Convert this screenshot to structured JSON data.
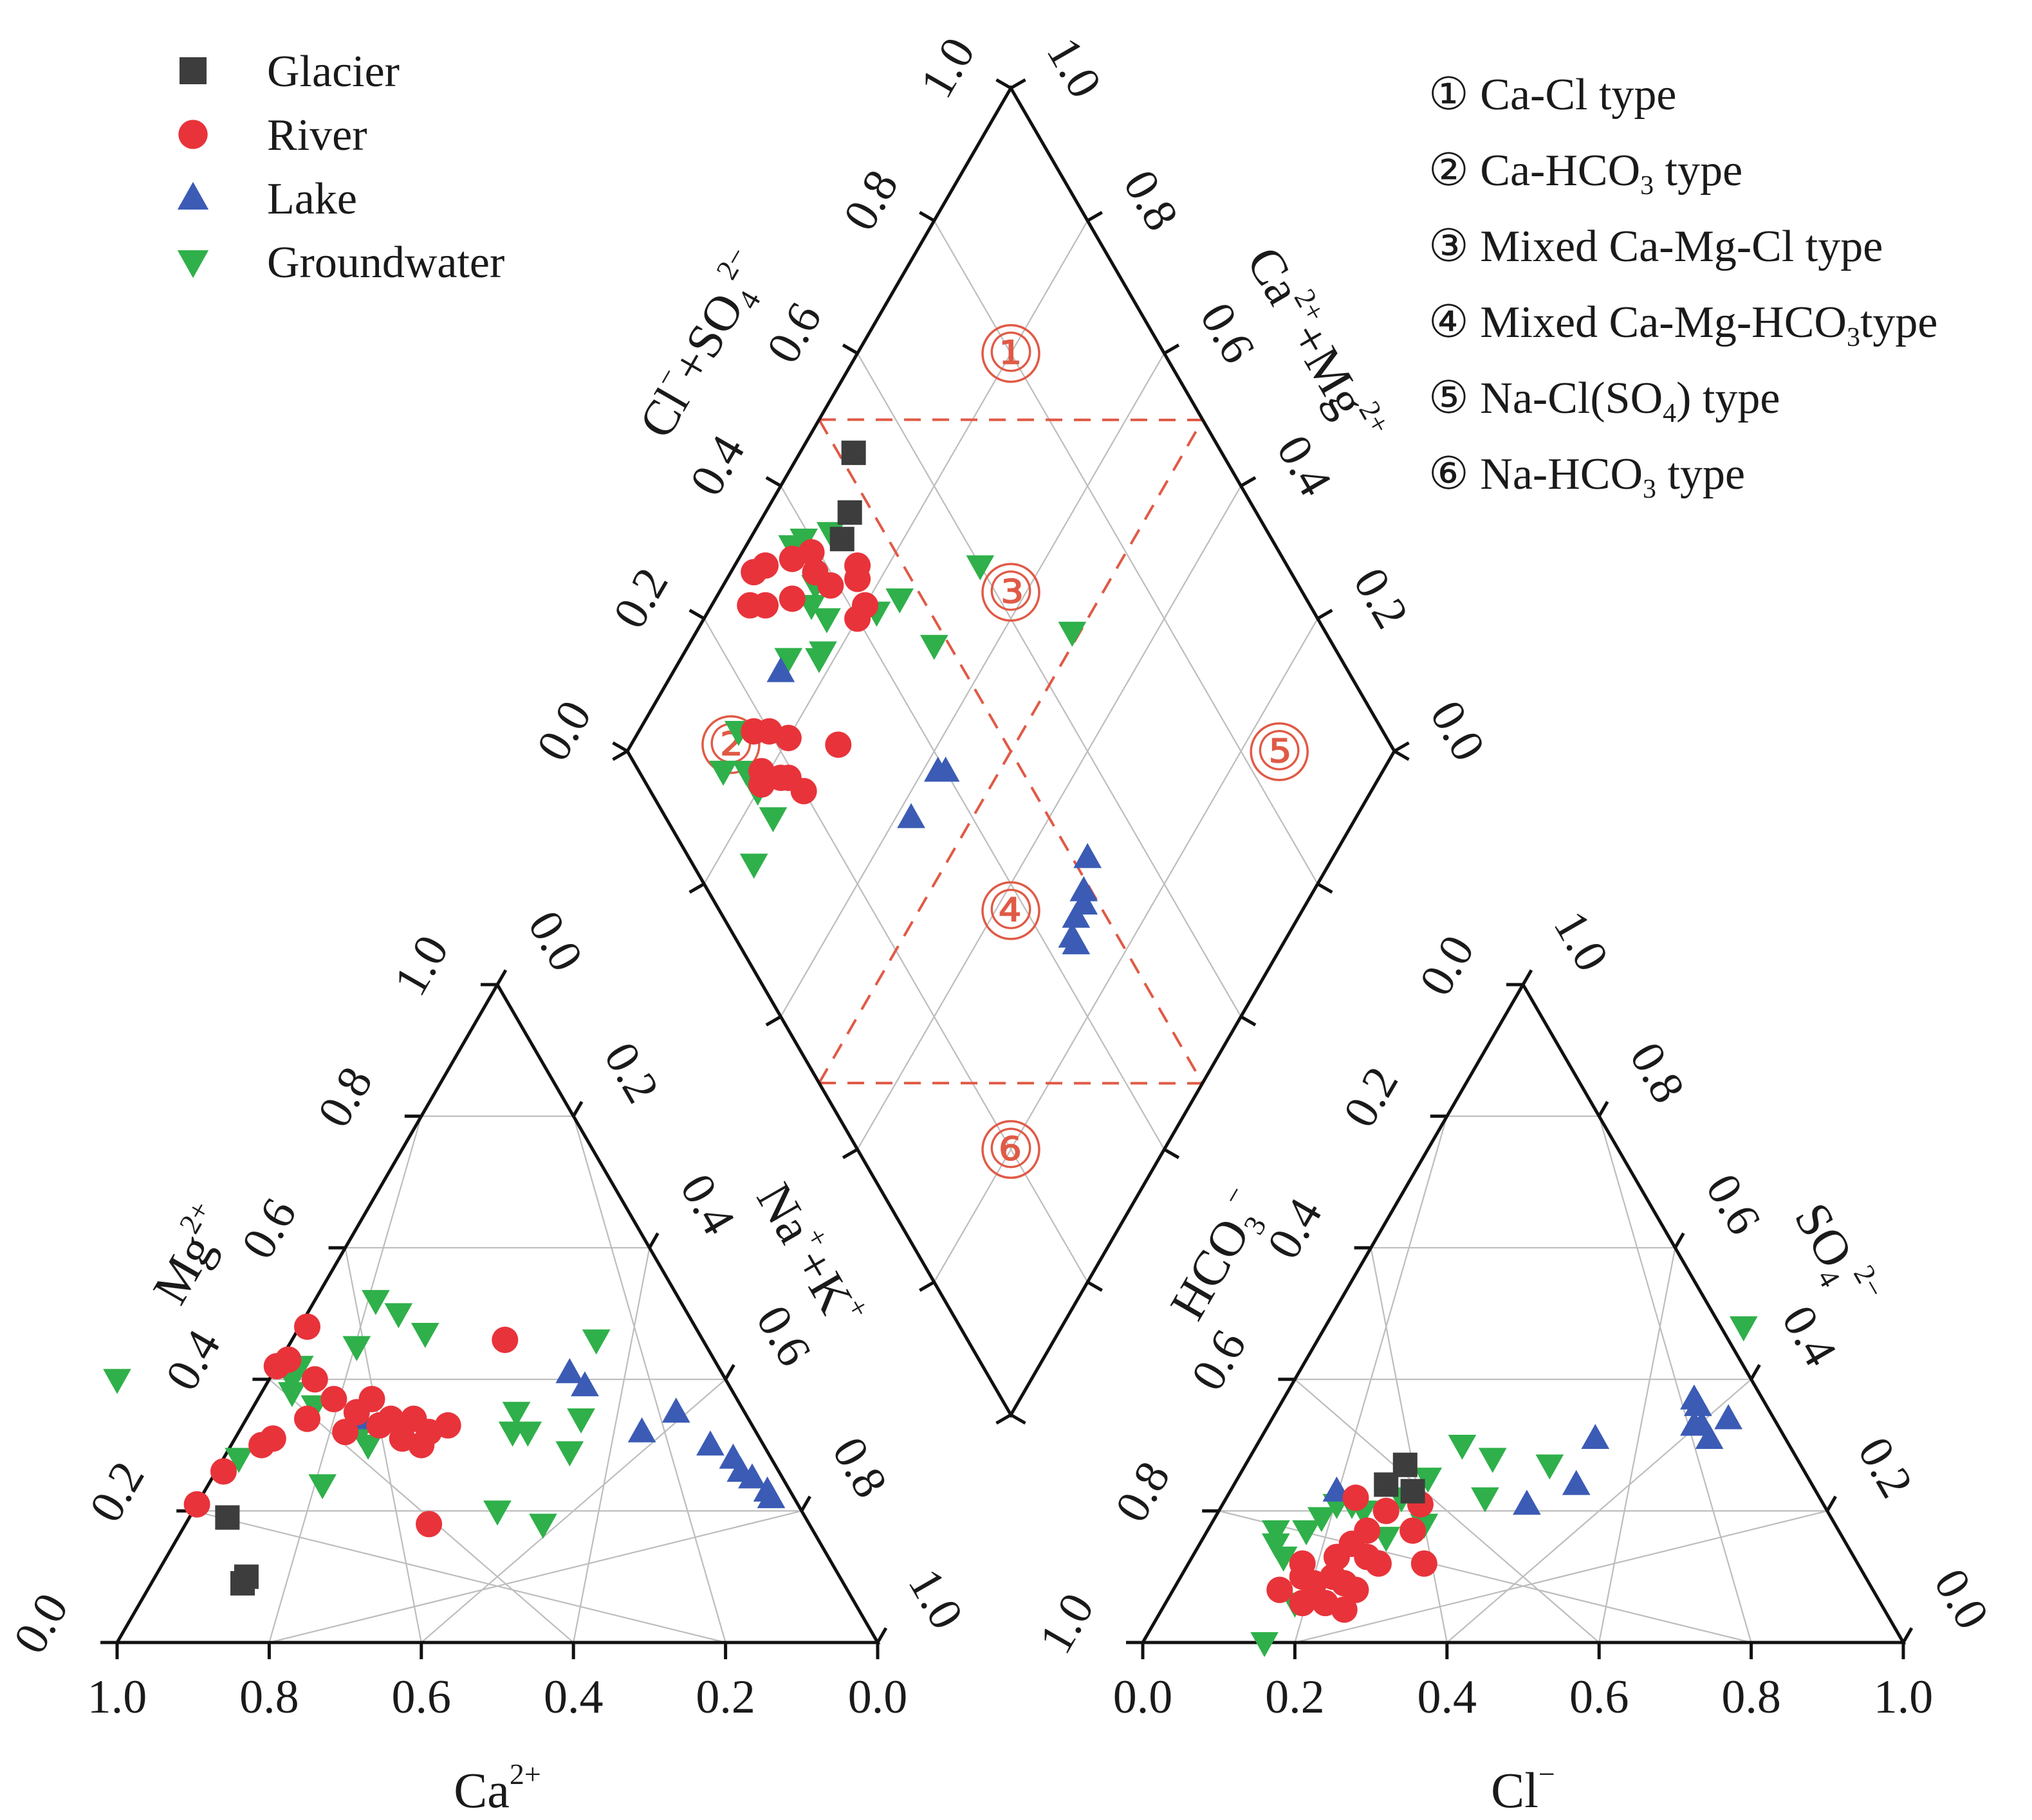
{
  "colors": {
    "glacier": "#3d3d3d",
    "river": "#e8333a",
    "lake": "#3b5bb5",
    "groundwater": "#2fb04a",
    "zone": "#e05a46",
    "frame": "#111111",
    "grid": "#bdbdbd"
  },
  "legend": {
    "items": [
      {
        "label": "Glacier",
        "marker": "square",
        "color": "#3d3d3d"
      },
      {
        "label": "River",
        "marker": "circle",
        "color": "#e8333a"
      },
      {
        "label": "Lake",
        "marker": "triangle-up",
        "color": "#3b5bb5"
      },
      {
        "label": "Groundwater",
        "marker": "triangle-down",
        "color": "#2fb04a"
      }
    ]
  },
  "water_types": {
    "items": [
      {
        "num": "①",
        "pre": "Ca-Cl type"
      },
      {
        "num": "②",
        "pre": "Ca-HCO",
        "sub": "3",
        "post": " type"
      },
      {
        "num": "③",
        "pre": "Mixed Ca-Mg-Cl type"
      },
      {
        "num": "④",
        "pre": "Mixed Ca-Mg-HCO",
        "sub": "3",
        "post": "type"
      },
      {
        "num": "⑤",
        "pre": "Na-Cl(SO",
        "sub": "4",
        "post": ") type"
      },
      {
        "num": "⑥",
        "pre": "Na-HCO",
        "sub": "3",
        "post": " type"
      }
    ]
  },
  "chart_data": [
    {
      "type": "scatter",
      "subtype": "ternary",
      "name": "cation-triangle",
      "axes": {
        "bottom": {
          "label": "Ca",
          "sup": "2+",
          "ticks": [
            "1.0",
            "0.8",
            "0.6",
            "0.4",
            "0.2",
            "0.0"
          ]
        },
        "left": {
          "label": "Mg",
          "sup": "2+",
          "ticks": [
            "0.0",
            "0.2",
            "0.4",
            "0.6",
            "0.8",
            "1.0"
          ]
        },
        "right": {
          "label": "Na",
          "sup": "+",
          "label2": "+K",
          "sup2": "+",
          "ticks": [
            "0.0",
            "0.2",
            "0.4",
            "0.6",
            "0.8",
            "1.0"
          ]
        }
      },
      "components": [
        "Ca",
        "Mg",
        "NaK"
      ],
      "series": [
        {
          "name": "Glacier",
          "points": [
            [
              0.76,
              0.19,
              0.05
            ],
            [
              0.78,
              0.1,
              0.12
            ],
            [
              0.79,
              0.09,
              0.12
            ]
          ]
        },
        {
          "name": "River",
          "points": [
            [
              0.79,
              0.21,
              0.0
            ],
            [
              0.73,
              0.26,
              0.01
            ],
            [
              0.66,
              0.3,
              0.04
            ],
            [
              0.64,
              0.31,
              0.05
            ],
            [
              0.58,
              0.34,
              0.08
            ],
            [
              0.58,
              0.42,
              0.0
            ],
            [
              0.56,
              0.43,
              0.01
            ],
            [
              0.54,
              0.4,
              0.06
            ],
            [
              0.51,
              0.48,
              0.01
            ],
            [
              0.53,
              0.37,
              0.1
            ],
            [
              0.51,
              0.35,
              0.14
            ],
            [
              0.48,
              0.37,
              0.15
            ],
            [
              0.49,
              0.33,
              0.18
            ],
            [
              0.47,
              0.34,
              0.19
            ],
            [
              0.45,
              0.3,
              0.25
            ],
            [
              0.47,
              0.31,
              0.22
            ],
            [
              0.44,
              0.34,
              0.22
            ],
            [
              0.43,
              0.32,
              0.25
            ],
            [
              0.4,
              0.33,
              0.27
            ],
            [
              0.54,
              0.32,
              0.14
            ],
            [
              0.5,
              0.18,
              0.32
            ],
            [
              0.26,
              0.46,
              0.28
            ]
          ]
        },
        {
          "name": "Lake",
          "points": [
            [
              0.51,
              0.34,
              0.15
            ],
            [
              0.2,
              0.41,
              0.39
            ],
            [
              0.19,
              0.39,
              0.42
            ],
            [
              0.15,
              0.32,
              0.53
            ],
            [
              0.09,
              0.35,
              0.56
            ],
            [
              0.07,
              0.3,
              0.63
            ],
            [
              0.05,
              0.28,
              0.67
            ],
            [
              0.05,
              0.26,
              0.69
            ],
            [
              0.04,
              0.25,
              0.71
            ],
            [
              0.03,
              0.23,
              0.74
            ],
            [
              0.03,
              0.22,
              0.75
            ]
          ]
        },
        {
          "name": "Groundwater",
          "points": [
            [
              0.8,
              0.4,
              -0.2
            ],
            [
              0.7,
              0.28,
              0.02
            ],
            [
              0.61,
              0.24,
              0.15
            ],
            [
              0.58,
              0.38,
              0.04
            ],
            [
              0.56,
              0.36,
              0.08
            ],
            [
              0.57,
              0.4,
              0.03
            ],
            [
              0.55,
              0.42,
              0.03
            ],
            [
              0.52,
              0.32,
              0.16
            ],
            [
              0.52,
              0.3,
              0.18
            ],
            [
              0.46,
              0.45,
              0.09
            ],
            [
              0.4,
              0.52,
              0.08
            ],
            [
              0.38,
              0.5,
              0.12
            ],
            [
              0.36,
              0.47,
              0.17
            ],
            [
              0.32,
              0.32,
              0.36
            ],
            [
              0.3,
              0.35,
              0.35
            ],
            [
              0.3,
              0.32,
              0.38
            ],
            [
              0.26,
              0.29,
              0.45
            ],
            [
              0.22,
              0.34,
              0.44
            ],
            [
              0.14,
              0.46,
              0.4
            ],
            [
              0.35,
              0.18,
              0.47
            ],
            [
              0.4,
              0.2,
              0.4
            ]
          ]
        }
      ]
    },
    {
      "type": "scatter",
      "subtype": "ternary",
      "name": "anion-triangle",
      "axes": {
        "bottom": {
          "label": "Cl",
          "sup": "−",
          "ticks": [
            "0.0",
            "0.2",
            "0.4",
            "0.6",
            "0.8",
            "1.0"
          ]
        },
        "left": {
          "label": "HCO",
          "sub": "3",
          "sup": "−",
          "ticks": [
            "1.0",
            "0.8",
            "0.6",
            "0.4",
            "0.2",
            "0.0"
          ]
        },
        "right": {
          "label": "SO",
          "sub": "4",
          "sup": "2−",
          "ticks": [
            "1.0",
            "0.8",
            "0.6",
            "0.4",
            "0.2",
            "0.0"
          ]
        }
      },
      "components": [
        "Cl",
        "SO4",
        "HCO3"
      ],
      "series": [
        {
          "name": "Glacier",
          "points": [
            [
              0.21,
              0.27,
              0.52
            ],
            [
              0.2,
              0.24,
              0.56
            ],
            [
              0.24,
              0.23,
              0.53
            ]
          ]
        },
        {
          "name": "River",
          "points": [
            [
              0.15,
              0.12,
              0.73
            ],
            [
              0.16,
              0.1,
              0.74
            ],
            [
              0.18,
              0.09,
              0.73
            ],
            [
              0.2,
              0.1,
              0.7
            ],
            [
              0.22,
              0.09,
              0.69
            ],
            [
              0.24,
              0.08,
              0.68
            ],
            [
              0.2,
              0.15,
              0.65
            ],
            [
              0.21,
              0.17,
              0.62
            ],
            [
              0.19,
              0.13,
              0.68
            ],
            [
              0.23,
              0.13,
              0.64
            ],
            [
              0.25,
              0.12,
              0.63
            ],
            [
              0.14,
              0.08,
              0.78
            ],
            [
              0.18,
              0.06,
              0.76
            ],
            [
              0.21,
              0.06,
              0.73
            ],
            [
              0.24,
              0.05,
              0.71
            ],
            [
              0.22,
              0.2,
              0.58
            ],
            [
              0.26,
              0.21,
              0.53
            ],
            [
              0.31,
              0.12,
              0.57
            ],
            [
              0.27,
              0.17,
              0.56
            ],
            [
              0.17,
              0.22,
              0.61
            ]
          ]
        },
        {
          "name": "Lake",
          "points": [
            [
              0.14,
              0.23,
              0.63
            ],
            [
              0.4,
              0.21,
              0.39
            ],
            [
              0.45,
              0.24,
              0.31
            ],
            [
              0.44,
              0.31,
              0.25
            ],
            [
              0.54,
              0.37,
              0.09
            ],
            [
              0.55,
              0.36,
              0.09
            ],
            [
              0.56,
              0.33,
              0.11
            ],
            [
              0.57,
              0.33,
              0.1
            ],
            [
              0.59,
              0.31,
              0.1
            ],
            [
              0.6,
              0.34,
              0.06
            ]
          ]
        },
        {
          "name": "Groundwater",
          "points": [
            [
              0.09,
              0.17,
              0.74
            ],
            [
              0.1,
              0.15,
              0.75
            ],
            [
              0.12,
              0.13,
              0.75
            ],
            [
              0.15,
              0.21,
              0.64
            ],
            [
              0.14,
              0.19,
              0.67
            ],
            [
              0.17,
              0.21,
              0.62
            ],
            [
              0.19,
              0.2,
              0.61
            ],
            [
              0.23,
              0.22,
              0.55
            ],
            [
              0.25,
              0.25,
              0.5
            ],
            [
              0.28,
              0.18,
              0.54
            ],
            [
              0.34,
              0.22,
              0.44
            ],
            [
              0.32,
              0.28,
              0.4
            ],
            [
              0.4,
              0.27,
              0.33
            ],
            [
              0.24,
              0.16,
              0.6
            ],
            [
              0.17,
              0.06,
              0.77
            ],
            [
              0.16,
              0.0,
              0.84
            ],
            [
              0.55,
              0.48,
              -0.03
            ],
            [
              0.27,
              0.3,
              0.43
            ],
            [
              0.13,
              0.17,
              0.7
            ]
          ]
        }
      ]
    },
    {
      "type": "scatter",
      "subtype": "piper-diamond",
      "name": "diamond",
      "axes": {
        "upper-left": {
          "label": "Cl",
          "sup": "−",
          "label2": "+SO",
          "sub2": "4",
          "sup2": "2−",
          "ticks": [
            "0.0",
            "0.2",
            "0.4",
            "0.6",
            "0.8",
            "1.0"
          ]
        },
        "upper-right": {
          "label": "Ca",
          "sup": "2+",
          "label2": "+Mg",
          "sup2": "2+",
          "ticks": [
            "1.0",
            "0.8",
            "0.6",
            "0.4",
            "0.2",
            "0.0"
          ]
        }
      },
      "components": [
        "ClSO4",
        "NaK"
      ],
      "zones": [
        {
          "label": "①",
          "value": [
            0.8,
            0.2
          ]
        },
        {
          "label": "②",
          "value": [
            0.14,
            0.13
          ]
        },
        {
          "label": "③",
          "value": [
            0.62,
            0.38
          ]
        },
        {
          "label": "④",
          "value": [
            0.38,
            0.62
          ]
        },
        {
          "label": "⑤",
          "value": [
            0.85,
            0.85
          ]
        },
        {
          "label": "⑥",
          "value": [
            0.2,
            0.8
          ]
        }
      ],
      "series": [
        {
          "name": "Glacier",
          "points": [
            [
              0.52,
              0.07
            ],
            [
              0.47,
              0.11
            ],
            [
              0.44,
              0.12
            ]
          ]
        },
        {
          "name": "River",
          "points": [
            [
              0.27,
              0.05
            ],
            [
              0.3,
              0.03
            ],
            [
              0.29,
              0.07
            ],
            [
              0.32,
              0.04
            ],
            [
              0.33,
              0.1
            ],
            [
              0.36,
              0.07
            ],
            [
              0.38,
              0.11
            ],
            [
              0.39,
              0.09
            ],
            [
              0.39,
              0.14
            ],
            [
              0.44,
              0.16
            ],
            [
              0.43,
              0.17
            ],
            [
              0.42,
              0.2
            ],
            [
              0.42,
              0.2
            ],
            [
              0.4,
              0.2
            ],
            [
              0.2,
              0.17
            ],
            [
              0.18,
              0.15
            ],
            [
              0.22,
              0.2
            ],
            [
              0.16,
              0.19
            ],
            [
              0.18,
              0.22
            ],
            [
              0.2,
              0.26
            ],
            [
              0.15,
              0.2
            ],
            [
              0.28,
              0.27
            ],
            [
              0.19,
              0.23
            ]
          ]
        },
        {
          "name": "Lake",
          "points": [
            [
              0.26,
              0.14
            ],
            [
              0.39,
              0.42
            ],
            [
              0.4,
              0.43
            ],
            [
              0.32,
              0.42
            ],
            [
              0.52,
              0.68
            ],
            [
              0.49,
              0.7
            ],
            [
              0.48,
              0.71
            ],
            [
              0.46,
              0.71
            ],
            [
              0.44,
              0.72
            ],
            [
              0.44,
              0.73
            ]
          ]
        },
        {
          "name": "Groundwater",
          "points": [
            [
              0.43,
              0.1
            ],
            [
              0.37,
              0.06
            ],
            [
              0.39,
              0.07
            ],
            [
              0.37,
              0.12
            ],
            [
              0.35,
              0.13
            ],
            [
              0.36,
              0.16
            ],
            [
              0.33,
              0.18
            ],
            [
              0.32,
              0.18
            ],
            [
              0.43,
              0.22
            ],
            [
              0.47,
              0.24
            ],
            [
              0.48,
              0.32
            ],
            [
              0.6,
              0.32
            ],
            [
              0.67,
              0.49
            ],
            [
              0.14,
              0.17
            ],
            [
              0.16,
              0.13
            ],
            [
              0.14,
              0.2
            ],
            [
              0.14,
              0.24
            ],
            [
              0.08,
              0.25
            ],
            [
              0.11,
              0.14
            ],
            [
              0.28,
              0.14
            ]
          ]
        }
      ]
    }
  ]
}
